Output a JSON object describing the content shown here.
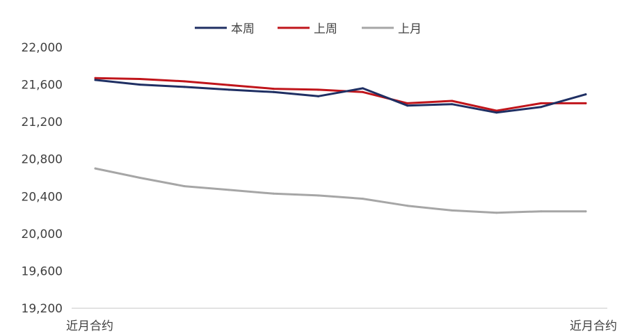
{
  "chart_data": {
    "type": "line",
    "title": "",
    "xlabel": "",
    "ylabel": "",
    "x_tick_labels": [
      "近月合约",
      "近月合约"
    ],
    "ylim": [
      19200,
      22000
    ],
    "y_ticks": [
      22000,
      21600,
      21200,
      20800,
      20400,
      20000,
      19600,
      19200
    ],
    "y_tick_labels": [
      "22,000",
      "21,600",
      "21,200",
      "20,800",
      "20,400",
      "20,000",
      "19,600",
      "19,200"
    ],
    "grid": false,
    "legend_position": "top-center",
    "series": [
      {
        "name": "本周",
        "color": "#1f2f63",
        "values": [
          21650,
          21600,
          21575,
          21545,
          21520,
          21475,
          21560,
          21375,
          21390,
          21300,
          21360,
          21495
        ]
      },
      {
        "name": "上周",
        "color": "#c0151b",
        "values": [
          21670,
          21660,
          21635,
          21595,
          21555,
          21545,
          21520,
          21400,
          21425,
          21320,
          21400,
          21400
        ]
      },
      {
        "name": "上月",
        "color": "#a6a6a6",
        "values": [
          20700,
          20600,
          20510,
          20470,
          20430,
          20410,
          20375,
          20300,
          20250,
          20225,
          20240,
          20240
        ]
      }
    ]
  }
}
